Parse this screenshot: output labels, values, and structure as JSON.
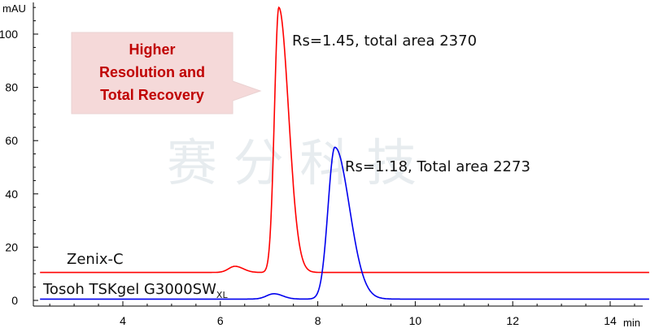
{
  "chart_data": {
    "type": "line",
    "xlabel": "min",
    "ylabel": "mAU",
    "xlim": [
      2.3,
      14.8
    ],
    "ylim": [
      -2,
      112
    ],
    "x_ticks": [
      4,
      6,
      8,
      10,
      12,
      14
    ],
    "y_ticks": [
      0,
      20,
      40,
      60,
      80,
      100
    ],
    "grid": false,
    "series": [
      {
        "name": "Zenix-C",
        "color": "#ff0000",
        "baseline": 10.5,
        "peaks": [
          {
            "center": 6.3,
            "height": 2.3,
            "sigma_left": 0.13,
            "sigma_right": 0.17
          },
          {
            "center": 7.2,
            "height": 99.5,
            "sigma_left": 0.09,
            "sigma_right": 0.2
          }
        ],
        "annotation": "Rs=1.45, total area 2370"
      },
      {
        "name": "Tosoh TSKgel G3000SW",
        "name_subscript": "XL",
        "color": "#0000ee",
        "baseline": 0.5,
        "peaks": [
          {
            "center": 7.1,
            "height": 2.0,
            "sigma_left": 0.15,
            "sigma_right": 0.18
          },
          {
            "center": 8.35,
            "height": 57.0,
            "sigma_left": 0.14,
            "sigma_right": 0.3
          }
        ],
        "annotation": "Rs=1.18, Total area 2273"
      }
    ],
    "callout": {
      "lines": [
        "Higher",
        "Resolution and",
        "Total Recovery"
      ],
      "color": "#c00000",
      "fill": "#f5d9d9"
    },
    "watermark": "赛 分 科 技"
  }
}
